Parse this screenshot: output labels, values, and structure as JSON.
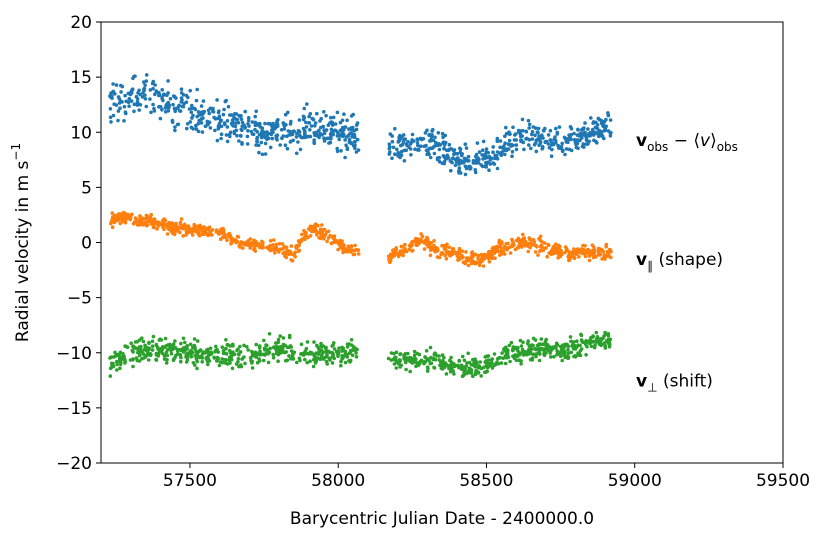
{
  "chart_data": {
    "type": "scatter",
    "xlabel": "Barycentric Julian Date - 2400000.0",
    "ylabel": "Radial velocity in m s",
    "ylabel_exponent": "−1",
    "xlim": [
      57200,
      59500
    ],
    "ylim": [
      -20,
      20
    ],
    "x_ticks": [
      57500,
      58000,
      58500,
      59000,
      59500
    ],
    "y_ticks": [
      -20,
      -15,
      -10,
      -5,
      0,
      5,
      10,
      15,
      20
    ],
    "grid": false,
    "marker_size": 1.8,
    "annotations": [
      {
        "bold": "v",
        "sub": "obs",
        "rest": " − ⟨",
        "italic": "v",
        "rest2": "⟩",
        "sub2": "obs",
        "y": 9.3
      },
      {
        "bold": "v",
        "sub": "∥",
        "rest": " (shape)",
        "y": -1.5
      },
      {
        "bold": "v",
        "sub": "⊥",
        "rest": " (shift)",
        "y": -12.5
      }
    ],
    "series": [
      {
        "color": "#1f77b4",
        "segments": [
          {
            "start": 57230,
            "end": 58070,
            "points": [
              [
                57230,
                12.8
              ],
              [
                57350,
                13.4
              ],
              [
                57450,
                12.2
              ],
              [
                57550,
                11.3
              ],
              [
                57650,
                10.6
              ],
              [
                57730,
                10.0
              ],
              [
                57800,
                9.8
              ],
              [
                57870,
                10.4
              ],
              [
                57930,
                10.6
              ],
              [
                58000,
                10.3
              ],
              [
                58070,
                9.3
              ]
            ],
            "spread": 1.6,
            "n": 520
          },
          {
            "start": 58170,
            "end": 58920,
            "points": [
              [
                58170,
                8.6
              ],
              [
                58250,
                8.9
              ],
              [
                58330,
                8.8
              ],
              [
                58380,
                7.9
              ],
              [
                58450,
                7.2
              ],
              [
                58500,
                7.6
              ],
              [
                58560,
                8.7
              ],
              [
                58620,
                9.8
              ],
              [
                58700,
                9.4
              ],
              [
                58780,
                9.3
              ],
              [
                58850,
                10.0
              ],
              [
                58920,
                10.6
              ]
            ],
            "spread": 1.2,
            "n": 460
          }
        ]
      },
      {
        "color": "#ff7f0e",
        "segments": [
          {
            "start": 57230,
            "end": 58070,
            "points": [
              [
                57230,
                2.0
              ],
              [
                57300,
                2.3
              ],
              [
                57400,
                1.6
              ],
              [
                57500,
                1.2
              ],
              [
                57580,
                1.1
              ],
              [
                57650,
                0.2
              ],
              [
                57730,
                -0.3
              ],
              [
                57800,
                -0.5
              ],
              [
                57850,
                -1.2
              ],
              [
                57880,
                0.6
              ],
              [
                57920,
                1.3
              ],
              [
                57970,
                0.5
              ],
              [
                58020,
                -0.5
              ],
              [
                58070,
                -0.8
              ]
            ],
            "spread": 0.5,
            "n": 520
          },
          {
            "start": 58170,
            "end": 58920,
            "points": [
              [
                58170,
                -1.2
              ],
              [
                58230,
                -0.6
              ],
              [
                58280,
                0.2
              ],
              [
                58330,
                -0.6
              ],
              [
                58380,
                -1.0
              ],
              [
                58450,
                -1.4
              ],
              [
                58500,
                -1.4
              ],
              [
                58560,
                -0.5
              ],
              [
                58620,
                0.1
              ],
              [
                58700,
                -0.5
              ],
              [
                58780,
                -1.0
              ],
              [
                58850,
                -0.8
              ],
              [
                58920,
                -1.0
              ]
            ],
            "spread": 0.6,
            "n": 460
          }
        ]
      },
      {
        "color": "#2ca02c",
        "segments": [
          {
            "start": 57230,
            "end": 58070,
            "points": [
              [
                57230,
                -11.0
              ],
              [
                57300,
                -10.0
              ],
              [
                57400,
                -9.7
              ],
              [
                57500,
                -9.9
              ],
              [
                57600,
                -10.2
              ],
              [
                57700,
                -10.2
              ],
              [
                57800,
                -9.6
              ],
              [
                57870,
                -10.4
              ],
              [
                57930,
                -10.1
              ],
              [
                58000,
                -10.0
              ],
              [
                58070,
                -9.8
              ]
            ],
            "spread": 1.0,
            "n": 520
          },
          {
            "start": 58170,
            "end": 58920,
            "points": [
              [
                58170,
                -10.5
              ],
              [
                58250,
                -10.8
              ],
              [
                58320,
                -10.6
              ],
              [
                58380,
                -11.2
              ],
              [
                58450,
                -11.4
              ],
              [
                58500,
                -11.0
              ],
              [
                58560,
                -10.2
              ],
              [
                58620,
                -9.8
              ],
              [
                58700,
                -9.6
              ],
              [
                58780,
                -9.8
              ],
              [
                58850,
                -9.0
              ],
              [
                58920,
                -8.8
              ]
            ],
            "spread": 0.8,
            "n": 460
          }
        ]
      }
    ]
  }
}
